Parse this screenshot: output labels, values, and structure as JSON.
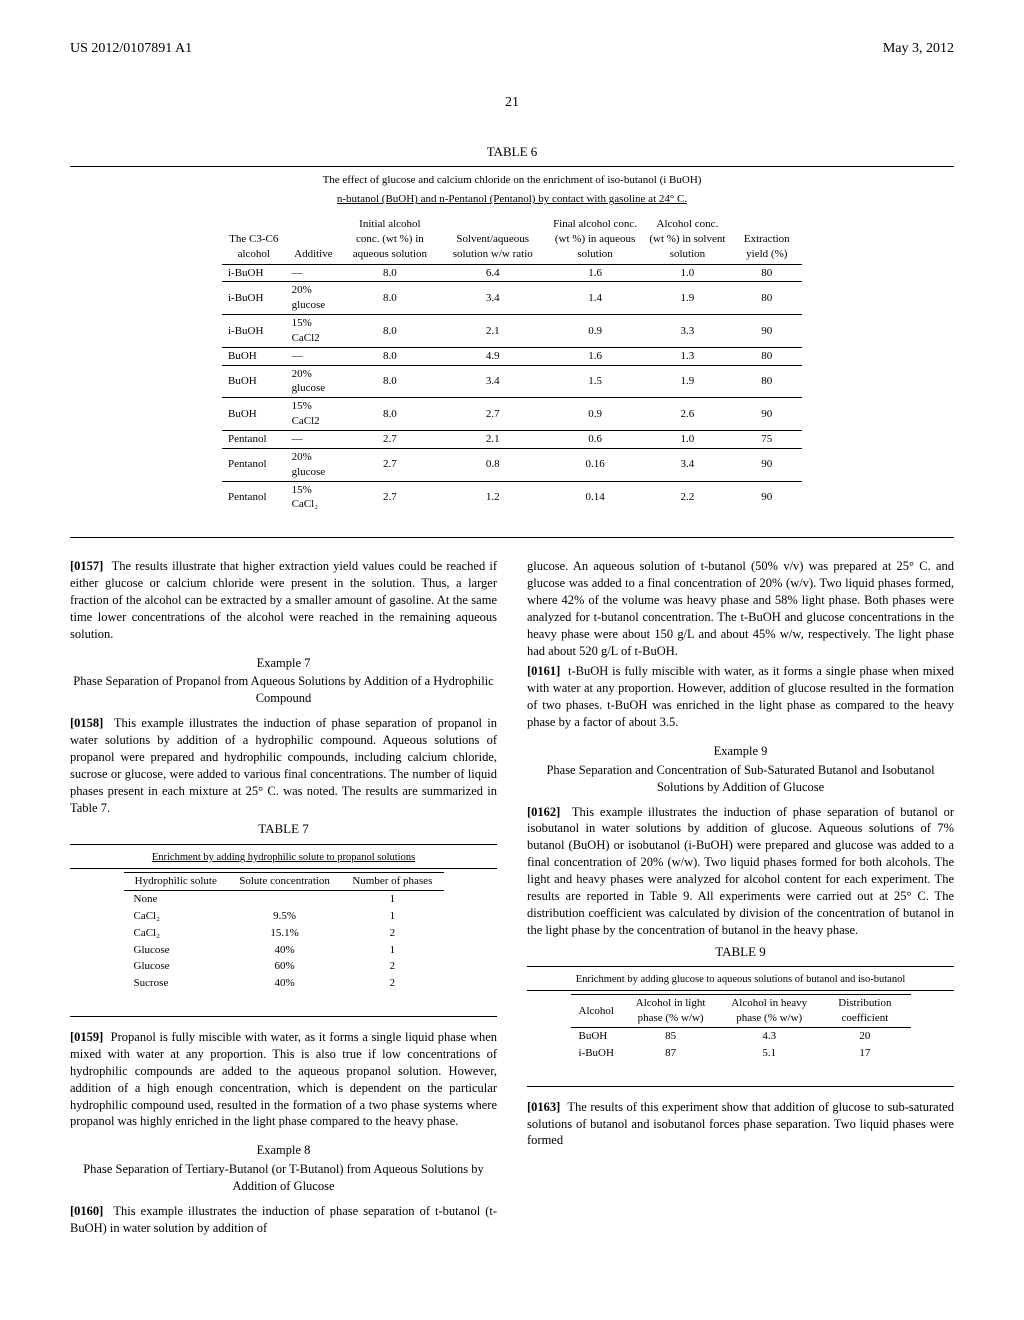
{
  "header": {
    "pub": "US 2012/0107891 A1",
    "date": "May 3, 2012"
  },
  "page": "21",
  "table6": {
    "label": "TABLE 6",
    "caption1": "The effect of glucose and calcium chloride on the enrichment of iso-butanol (i BuOH)",
    "caption2": "n-butanol (BuOH) and n-Pentanol (Pentanol) by contact with gasoline at 24° C.",
    "headers": [
      "The C3-C6 alcohol",
      "Additive",
      "Initial alcohol conc. (wt %) in aqueous solution",
      "Solvent/aqueous solution w/w ratio",
      "Final alcohol conc. (wt %) in aqueous solution",
      "Alcohol conc. (wt %) in solvent solution",
      "Extraction yield (%)"
    ],
    "rows": [
      [
        "i-BuOH",
        "—",
        "8.0",
        "6.4",
        "1.6",
        "1.0",
        "80"
      ],
      [
        "i-BuOH",
        "20% glucose",
        "8.0",
        "3.4",
        "1.4",
        "1.9",
        "80"
      ],
      [
        "i-BuOH",
        "15% CaCl2",
        "8.0",
        "2.1",
        "0.9",
        "3.3",
        "90"
      ],
      [
        "BuOH",
        "—",
        "8.0",
        "4.9",
        "1.6",
        "1.3",
        "80"
      ],
      [
        "BuOH",
        "20% glucose",
        "8.0",
        "3.4",
        "1.5",
        "1.9",
        "80"
      ],
      [
        "BuOH",
        "15% CaCl2",
        "8.0",
        "2.7",
        "0.9",
        "2.6",
        "90"
      ],
      [
        "Pentanol",
        "—",
        "2.7",
        "2.1",
        "0.6",
        "1.0",
        "75"
      ],
      [
        "Pentanol",
        "20% glucose",
        "2.7",
        "0.8",
        "0.16",
        "3.4",
        "90"
      ],
      [
        "Pentanol",
        "15% CaCl₂",
        "2.7",
        "1.2",
        "0.14",
        "2.2",
        "90"
      ]
    ]
  },
  "p0157": "The results illustrate that higher extraction yield values could be reached if either glucose or calcium chloride were present in the solution. Thus, a larger fraction of the alcohol can be extracted by a smaller amount of gasoline. At the same time lower concentrations of the alcohol were reached in the remaining aqueous solution.",
  "ex7": {
    "title": "Example 7",
    "sub": "Phase Separation of Propanol from Aqueous Solutions by Addition of a Hydrophilic Compound"
  },
  "p0158": "This example illustrates the induction of phase separation of propanol in water solutions by addition of a hydrophilic compound. Aqueous solutions of propanol were prepared and hydrophilic compounds, including calcium chloride, sucrose or glucose, were added to various final concentrations. The number of liquid phases present in each mixture at 25° C. was noted. The results are summarized in Table 7.",
  "table7": {
    "label": "TABLE 7",
    "caption": "Enrichment by adding hydrophilic solute to propanol solutions",
    "headers": [
      "Hydrophilic solute",
      "Solute concentration",
      "Number of phases"
    ],
    "rows": [
      [
        "None",
        "",
        "1"
      ],
      [
        "CaCl₂",
        "9.5%",
        "1"
      ],
      [
        "CaCl₂",
        "15.1%",
        "2"
      ],
      [
        "Glucose",
        "40%",
        "1"
      ],
      [
        "Glucose",
        "60%",
        "2"
      ],
      [
        "Sucrose",
        "40%",
        "2"
      ]
    ]
  },
  "p0159": "Propanol is fully miscible with water, as it forms a single liquid phase when mixed with water at any proportion. This is also true if low concentrations of hydrophilic compounds are added to the aqueous propanol solution. However, addition of a high enough concentration, which is dependent on the particular hydrophilic compound used, resulted in the formation of a two phase systems where propanol was highly enriched in the light phase compared to the heavy phase.",
  "ex8": {
    "title": "Example 8",
    "sub": "Phase Separation of Tertiary-Butanol (or T-Butanol) from Aqueous Solutions by Addition of Glucose"
  },
  "p0160a": "This example illustrates the induction of phase separation of t-butanol (t-BuOH) in water solution by addition of",
  "p0160b": "glucose. An aqueous solution of t-butanol (50% v/v) was prepared at 25° C. and glucose was added to a final concentration of 20% (w/v). Two liquid phases formed, where 42% of the volume was heavy phase and 58% light phase. Both phases were analyzed for t-butanol concentration. The t-BuOH and glucose concentrations in the heavy phase were about 150 g/L and about 45% w/w, respectively. The light phase had about 520 g/L of t-BuOH.",
  "p0161": "t-BuOH is fully miscible with water, as it forms a single phase when mixed with water at any proportion. However, addition of glucose resulted in the formation of two phases. t-BuOH was enriched in the light phase as compared to the heavy phase by a factor of about 3.5.",
  "ex9": {
    "title": "Example 9",
    "sub": "Phase Separation and Concentration of Sub-Saturated Butanol and Isobutanol Solutions by Addition of Glucose"
  },
  "p0162": "This example illustrates the induction of phase separation of butanol or isobutanol in water solutions by addition of glucose. Aqueous solutions of 7% butanol (BuOH) or isobutanol (i-BuOH) were prepared and glucose was added to a final concentration of 20% (w/w). Two liquid phases formed for both alcohols. The light and heavy phases were analyzed for alcohol content for each experiment. The results are reported in Table 9. All experiments were carried out at 25° C. The distribution coefficient was calculated by division of the concentration of butanol in the light phase by the concentration of butanol in the heavy phase.",
  "table9": {
    "label": "TABLE 9",
    "caption": "Enrichment by adding glucose to aqueous solutions of butanol and iso-butanol",
    "headers": [
      "Alcohol",
      "Alcohol in light phase (% w/w)",
      "Alcohol in heavy phase (% w/w)",
      "Distribution coefficient"
    ],
    "rows": [
      [
        "BuOH",
        "85",
        "4.3",
        "20"
      ],
      [
        "i-BuOH",
        "87",
        "5.1",
        "17"
      ]
    ]
  },
  "p0163": "The results of this experiment show that addition of glucose to sub-saturated solutions of butanol and isobutanol forces phase separation. Two liquid phases were formed"
}
